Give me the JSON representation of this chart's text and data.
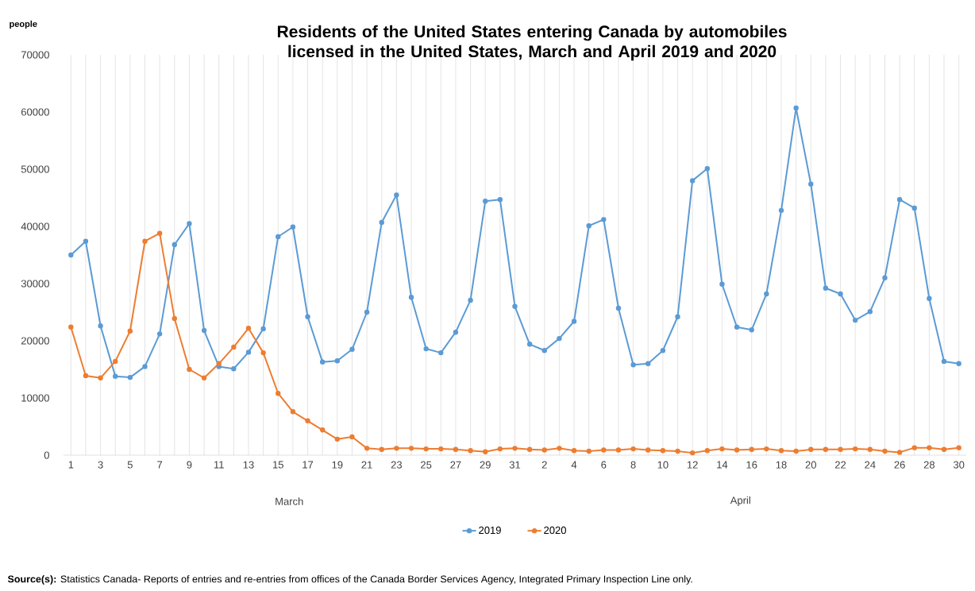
{
  "chart_data": {
    "type": "line",
    "title": "Residents of the United States entering Canada by automobiles licensed in the United States, March and April 2019 and 2020",
    "ylabel": "people",
    "categories": [
      "1",
      null,
      "3",
      null,
      "5",
      null,
      "7",
      null,
      "9",
      null,
      "11",
      null,
      "13",
      null,
      "15",
      null,
      "17",
      null,
      "19",
      null,
      "21",
      null,
      "23",
      null,
      "25",
      null,
      "27",
      null,
      "29",
      null,
      "31",
      null,
      "2",
      null,
      "4",
      null,
      "6",
      null,
      "8",
      null,
      "10",
      null,
      "12",
      null,
      "14",
      null,
      "16",
      null,
      "18",
      null,
      "20",
      null,
      "22",
      null,
      "24",
      null,
      "26",
      null,
      "28",
      null,
      "30"
    ],
    "series": [
      {
        "name": "2019",
        "color": "#5b9bd5",
        "values": [
          35000,
          37400,
          22600,
          13800,
          13600,
          15500,
          21200,
          36800,
          40500,
          21800,
          15500,
          15100,
          18000,
          22100,
          38200,
          39900,
          24200,
          16300,
          16500,
          18500,
          25000,
          40700,
          45500,
          27600,
          18600,
          17900,
          21500,
          27100,
          44400,
          44700,
          26000,
          19400,
          18300,
          20400,
          23400,
          40100,
          41200,
          25700,
          15800,
          16000,
          18300,
          24200,
          48000,
          50100,
          29900,
          22400,
          21900,
          28200,
          42800,
          60700,
          47400,
          29200,
          28200,
          23600,
          25100,
          31000,
          44700,
          43200,
          27400,
          16400,
          16000
        ]
      },
      {
        "name": "2020",
        "color": "#ed7d31",
        "values": [
          22400,
          13900,
          13500,
          16400,
          21700,
          37400,
          38800,
          23900,
          15000,
          13500,
          16000,
          18900,
          22200,
          17900,
          10800,
          7600,
          6000,
          4400,
          2800,
          3200,
          1200,
          1000,
          1200,
          1200,
          1100,
          1100,
          1000,
          800,
          600,
          1100,
          1200,
          1000,
          900,
          1200,
          800,
          700,
          900,
          900,
          1100,
          900,
          800,
          700,
          400,
          800,
          1100,
          900,
          1000,
          1100,
          800,
          700,
          1000,
          1000,
          1000,
          1100,
          1000,
          700,
          500,
          1300,
          1300,
          1000,
          1300
        ]
      }
    ],
    "ylim": [
      0,
      70000
    ],
    "yticks": [
      0,
      10000,
      20000,
      30000,
      40000,
      50000,
      60000,
      70000
    ],
    "grid": "x",
    "legend": "bottom",
    "marker": "circle",
    "line_style": "solid",
    "annotations": [
      "March",
      "April",
      "**Source(s):** Statistics Canada- Reports of entries and re-entries from offices of the Canada Border Services Agency, Integrated Primary Inspection Line only."
    ]
  }
}
